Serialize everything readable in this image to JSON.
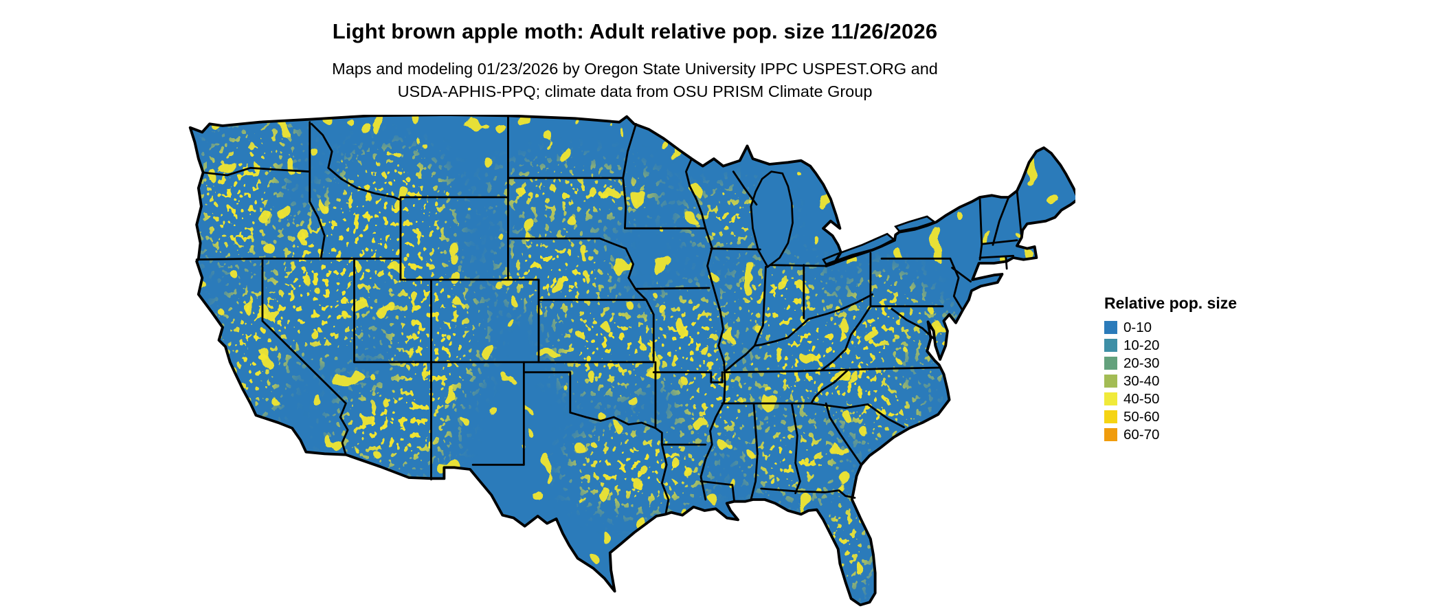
{
  "title": "Light brown apple moth: Adult relative pop. size 11/26/2026",
  "subtitle_line1": "Maps and modeling 01/23/2026 by Oregon State University IPPC USPEST.ORG and",
  "subtitle_line2": "USDA-APHIS-PPQ; climate data from OSU PRISM Climate Group",
  "legend": {
    "title": "Relative pop. size",
    "items": [
      {
        "label": "0-10",
        "color": "#2b7bba"
      },
      {
        "label": "10-20",
        "color": "#3e8fa6"
      },
      {
        "label": "20-30",
        "color": "#63a17c"
      },
      {
        "label": "30-40",
        "color": "#a3bc55"
      },
      {
        "label": "40-50",
        "color": "#f0ea3a"
      },
      {
        "label": "50-60",
        "color": "#f5d413"
      },
      {
        "label": "60-70",
        "color": "#f09c0c"
      }
    ]
  },
  "map": {
    "base_color": "#2b7bba",
    "border_color": "#000000",
    "speckle_yellow": "#f2e630",
    "speckle_teal": "#28a0b8",
    "background": "#ffffff"
  }
}
